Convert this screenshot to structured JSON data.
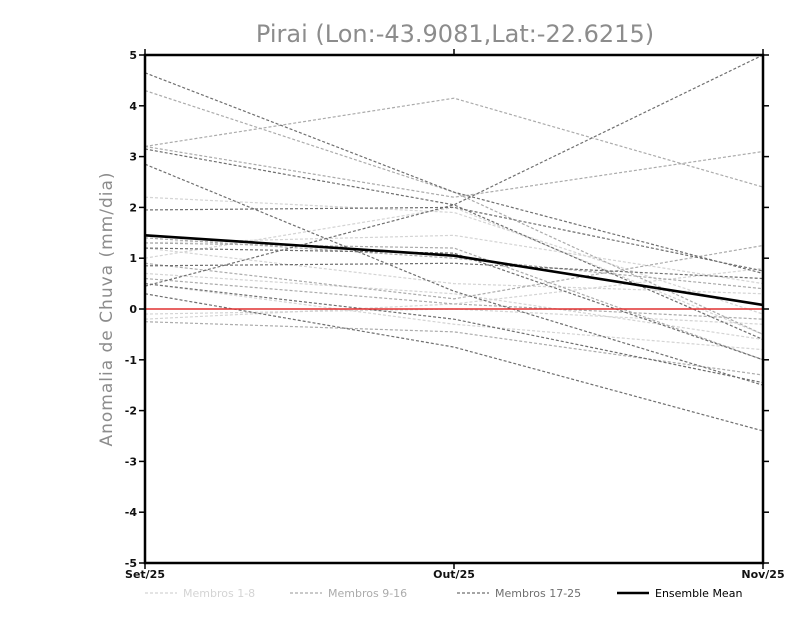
{
  "chart_data": {
    "type": "line",
    "title": "Pirai (Lon:-43.9081,Lat:-22.6215)",
    "xlabel": "",
    "ylabel": "Anomalia de Chuva (mm/dia)",
    "categories": [
      "Set/25",
      "Out/25",
      "Nov/25"
    ],
    "ylim": [
      -5,
      5
    ],
    "yticks": [
      -5,
      -4,
      -3,
      -2,
      -1,
      0,
      1,
      2,
      3,
      4,
      5
    ],
    "grid": false,
    "legend_position": "bottom",
    "groups": [
      {
        "name": "Membros 1-8",
        "color": "#d4d4d4"
      },
      {
        "name": "Membros 9-16",
        "color": "#ababab"
      },
      {
        "name": "Membros 17-25",
        "color": "#6f6f6f"
      }
    ],
    "reference_line": {
      "value": 0,
      "color": "#e03030"
    },
    "ensemble_mean": {
      "name": "Ensemble Mean",
      "color": "#000000",
      "values": [
        1.45,
        1.05,
        0.08
      ]
    },
    "series": [
      {
        "group": 0,
        "values": [
          2.2,
          1.9,
          -0.1
        ]
      },
      {
        "group": 0,
        "values": [
          1.3,
          1.45,
          0.5
        ]
      },
      {
        "group": 0,
        "values": [
          1.0,
          2.0,
          -0.5
        ]
      },
      {
        "group": 0,
        "values": [
          0.5,
          -0.3,
          -0.8
        ]
      },
      {
        "group": 0,
        "values": [
          -0.2,
          0.1,
          0.8
        ]
      },
      {
        "group": 0,
        "values": [
          0.7,
          0.3,
          -0.6
        ]
      },
      {
        "group": 0,
        "values": [
          1.2,
          0.5,
          0.3
        ]
      },
      {
        "group": 0,
        "values": [
          -0.1,
          0.0,
          -0.3
        ]
      },
      {
        "group": 1,
        "values": [
          3.2,
          4.15,
          2.4
        ]
      },
      {
        "group": 1,
        "values": [
          4.3,
          2.3,
          -0.5
        ]
      },
      {
        "group": 1,
        "values": [
          3.2,
          2.2,
          3.1
        ]
      },
      {
        "group": 1,
        "values": [
          1.3,
          1.2,
          -1.0
        ]
      },
      {
        "group": 1,
        "values": [
          0.9,
          0.2,
          1.25
        ]
      },
      {
        "group": 1,
        "values": [
          0.6,
          0.1,
          -0.2
        ]
      },
      {
        "group": 1,
        "values": [
          1.4,
          1.0,
          0.4
        ]
      },
      {
        "group": 1,
        "values": [
          -0.25,
          -0.45,
          -1.3
        ]
      },
      {
        "group": 2,
        "values": [
          4.65,
          2.3,
          0.7
        ]
      },
      {
        "group": 2,
        "values": [
          3.15,
          2.05,
          -0.6
        ]
      },
      {
        "group": 2,
        "values": [
          2.85,
          0.35,
          -1.5
        ]
      },
      {
        "group": 2,
        "values": [
          1.95,
          2.0,
          0.75
        ]
      },
      {
        "group": 2,
        "values": [
          0.45,
          2.05,
          5.0
        ]
      },
      {
        "group": 2,
        "values": [
          0.5,
          -0.2,
          -1.45
        ]
      },
      {
        "group": 2,
        "values": [
          0.3,
          -0.75,
          -2.4
        ]
      },
      {
        "group": 2,
        "values": [
          1.2,
          1.1,
          -1.0
        ]
      },
      {
        "group": 2,
        "values": [
          0.85,
          0.9,
          0.6
        ]
      }
    ]
  }
}
